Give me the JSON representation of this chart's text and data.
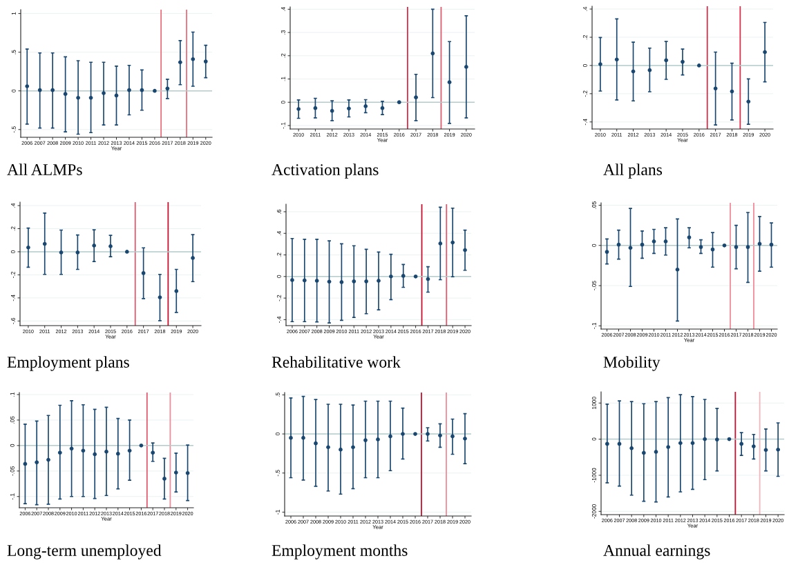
{
  "chart_data": [
    {
      "type": "scatter",
      "title": "All ALMPs",
      "xlabel": "Year",
      "x": [
        2006,
        2007,
        2008,
        2009,
        2010,
        2011,
        2012,
        2013,
        2014,
        2015,
        2016,
        2017,
        2018,
        2019,
        2020
      ],
      "xlim": [
        2005.5,
        2020.5
      ],
      "xticks": [
        2006,
        2007,
        2008,
        2009,
        2010,
        2011,
        2012,
        2013,
        2014,
        2015,
        2016,
        2017,
        2018,
        2019,
        2020
      ],
      "ylim": [
        -0.6,
        1.05
      ],
      "yticks": [
        {
          "value": -0.5,
          "label": "-.5"
        },
        0,
        {
          "value": 0.5,
          "label": ".5"
        },
        1
      ],
      "grid": "y",
      "marker": "circle",
      "series": [
        {
          "color": "#1a476f",
          "values": [
            0.06,
            0.01,
            0.01,
            -0.04,
            -0.09,
            -0.09,
            -0.03,
            -0.06,
            0.01,
            0.01,
            0,
            0.03,
            0.37,
            0.41,
            0.38
          ],
          "errors": [
            [
              -0.43,
              0.54
            ],
            [
              -0.48,
              0.49
            ],
            [
              -0.48,
              0.49
            ],
            [
              -0.53,
              0.44
            ],
            [
              -0.56,
              0.39
            ],
            [
              -0.54,
              0.37
            ],
            [
              -0.44,
              0.37
            ],
            [
              -0.44,
              0.32
            ],
            [
              -0.31,
              0.33
            ],
            [
              -0.25,
              0.27
            ],
            null,
            [
              -0.1,
              0.15
            ],
            [
              0.08,
              0.65
            ],
            [
              0.06,
              0.76
            ],
            [
              0.17,
              0.59
            ]
          ]
        }
      ],
      "ref_lines": [
        {
          "axis": "x",
          "value": 2016.5,
          "color": "#e8707f"
        },
        {
          "axis": "x",
          "value": 2018.5,
          "color": "#e8707f"
        },
        {
          "axis": "y",
          "value": 0,
          "color": "#b5cccc"
        }
      ]
    },
    {
      "type": "scatter",
      "title": "Activation plans",
      "xlabel": "Year",
      "x": [
        2010,
        2011,
        2012,
        2013,
        2014,
        2015,
        2016,
        2017,
        2018,
        2019,
        2020
      ],
      "xlim": [
        2009.5,
        2020.5
      ],
      "xticks": [
        2010,
        2011,
        2012,
        2013,
        2014,
        2015,
        2016,
        2017,
        2018,
        2019,
        2020
      ],
      "ylim": [
        -0.115,
        0.41
      ],
      "yticks": [
        {
          "value": -0.1,
          "label": "-.1"
        },
        0,
        {
          "value": 0.1,
          "label": ".1"
        },
        {
          "value": 0.2,
          "label": ".2"
        },
        {
          "value": 0.3,
          "label": ".3"
        },
        {
          "value": 0.4,
          "label": ".4"
        }
      ],
      "grid": "y",
      "marker": "circle",
      "series": [
        {
          "color": "#1a476f",
          "values": [
            -0.029,
            -0.025,
            -0.037,
            -0.027,
            -0.017,
            -0.025,
            0,
            0.021,
            0.21,
            0.086,
            0.152
          ],
          "errors": [
            [
              -0.069,
              0.01
            ],
            [
              -0.067,
              0.017
            ],
            [
              -0.079,
              0.006
            ],
            [
              -0.063,
              0.01
            ],
            [
              -0.045,
              0.011
            ],
            [
              -0.053,
              0.004
            ],
            null,
            [
              -0.079,
              0.12
            ],
            [
              0.02,
              0.4
            ],
            [
              -0.091,
              0.261
            ],
            [
              -0.067,
              0.372
            ]
          ]
        }
      ],
      "ref_lines": [
        {
          "axis": "x",
          "value": 2016.5,
          "color": "#d92f4a"
        },
        {
          "axis": "x",
          "value": 2018.5,
          "color": "#e05a6e"
        },
        {
          "axis": "y",
          "value": 0,
          "color": "#b5cccc"
        }
      ]
    },
    {
      "type": "scatter",
      "title": "All plans",
      "xlabel": "Year",
      "x": [
        2010,
        2011,
        2012,
        2013,
        2014,
        2015,
        2016,
        2017,
        2018,
        2019,
        2020
      ],
      "xlim": [
        2009.5,
        2020.5
      ],
      "xticks": [
        2010,
        2011,
        2012,
        2013,
        2014,
        2015,
        2016,
        2017,
        2018,
        2019,
        2020
      ],
      "ylim": [
        -0.45,
        0.42
      ],
      "yticks": [
        {
          "value": -0.4,
          "label": "-.4"
        },
        {
          "value": -0.2,
          "label": "-.2"
        },
        0,
        {
          "value": 0.2,
          "label": ".2"
        },
        {
          "value": 0.4,
          "label": ".4"
        }
      ],
      "grid": "y",
      "marker": "circle",
      "series": [
        {
          "color": "#1a476f",
          "values": [
            0.009,
            0.042,
            -0.042,
            -0.033,
            0.037,
            0.026,
            0,
            -0.163,
            -0.184,
            -0.256,
            0.095
          ],
          "errors": [
            [
              -0.181,
              0.198
            ],
            [
              -0.244,
              0.33
            ],
            [
              -0.251,
              0.165
            ],
            [
              -0.186,
              0.123
            ],
            [
              -0.098,
              0.17
            ],
            [
              -0.067,
              0.116
            ],
            null,
            [
              -0.421,
              0.095
            ],
            [
              -0.386,
              0.016
            ],
            [
              -0.416,
              -0.095
            ],
            [
              -0.116,
              0.305
            ]
          ]
        }
      ],
      "ref_lines": [
        {
          "axis": "x",
          "value": 2016.5,
          "color": "#d92f4a"
        },
        {
          "axis": "x",
          "value": 2018.5,
          "color": "#d92f4a"
        },
        {
          "axis": "y",
          "value": 0,
          "color": "#b5cccc"
        }
      ]
    },
    {
      "type": "scatter",
      "title": "Employment plans",
      "xlabel": "Year",
      "x": [
        2010,
        2011,
        2012,
        2013,
        2014,
        2015,
        2016,
        2017,
        2018,
        2019,
        2020
      ],
      "xlim": [
        2009.5,
        2020.5
      ],
      "xticks": [
        2010,
        2011,
        2012,
        2013,
        2014,
        2015,
        2016,
        2017,
        2018,
        2019,
        2020
      ],
      "ylim": [
        -0.64,
        0.43
      ],
      "yticks": [
        {
          "value": -0.6,
          "label": "-.6"
        },
        {
          "value": -0.4,
          "label": "-.4"
        },
        {
          "value": -0.2,
          "label": "-.2"
        },
        0,
        {
          "value": 0.2,
          "label": ".2"
        },
        {
          "value": 0.4,
          "label": ".4"
        }
      ],
      "grid": "y",
      "marker": "circle",
      "series": [
        {
          "color": "#1a476f",
          "values": [
            0.037,
            0.068,
            -0.006,
            -0.006,
            0.054,
            0.048,
            0,
            -0.185,
            -0.395,
            -0.341,
            -0.054
          ],
          "errors": [
            [
              -0.134,
              0.205
            ],
            [
              -0.196,
              0.335
            ],
            [
              -0.196,
              0.188
            ],
            [
              -0.153,
              0.145
            ],
            [
              -0.085,
              0.19
            ],
            [
              -0.043,
              0.142
            ],
            null,
            [
              -0.406,
              0.034
            ],
            [
              -0.597,
              -0.196
            ],
            [
              -0.526,
              -0.153
            ],
            [
              -0.259,
              0.148
            ]
          ]
        }
      ],
      "ref_lines": [
        {
          "axis": "x",
          "value": 2016.5,
          "color": "#e05a6e"
        },
        {
          "axis": "x",
          "value": 2018.5,
          "color": "#c8102e"
        },
        {
          "axis": "y",
          "value": 0,
          "color": "#b5cccc"
        }
      ]
    },
    {
      "type": "scatter",
      "title": "Rehabilitative work",
      "xlabel": "Year",
      "x": [
        2006,
        2007,
        2008,
        2009,
        2010,
        2011,
        2012,
        2013,
        2014,
        2015,
        2016,
        2017,
        2018,
        2019,
        2020
      ],
      "xlim": [
        2005.5,
        2020.5
      ],
      "xticks": [
        2006,
        2007,
        2008,
        2009,
        2010,
        2011,
        2012,
        2013,
        2014,
        2015,
        2016,
        2017,
        2018,
        2019,
        2020
      ],
      "ylim": [
        -0.455,
        0.67
      ],
      "yticks": [
        {
          "value": -0.4,
          "label": "-.4"
        },
        {
          "value": -0.2,
          "label": "-.2"
        },
        0,
        {
          "value": 0.2,
          "label": ".2"
        },
        {
          "value": 0.4,
          "label": ".4"
        },
        {
          "value": 0.6,
          "label": ".6"
        }
      ],
      "grid": "y",
      "marker": "circle",
      "series": [
        {
          "color": "#1a476f",
          "values": [
            -0.033,
            -0.036,
            -0.039,
            -0.048,
            -0.052,
            -0.045,
            -0.045,
            -0.039,
            0.0,
            0.006,
            0,
            -0.024,
            0.306,
            0.315,
            0.245
          ],
          "errors": [
            [
              -0.418,
              0.352
            ],
            [
              -0.418,
              0.345
            ],
            [
              -0.421,
              0.345
            ],
            [
              -0.43,
              0.33
            ],
            [
              -0.406,
              0.303
            ],
            [
              -0.379,
              0.285
            ],
            [
              -0.345,
              0.252
            ],
            [
              -0.309,
              0.227
            ],
            [
              -0.215,
              0.206
            ],
            [
              -0.1,
              0.112
            ],
            null,
            [
              -0.145,
              0.091
            ],
            [
              -0.03,
              0.642
            ],
            [
              -0.003,
              0.633
            ],
            [
              0.058,
              0.43
            ]
          ]
        }
      ],
      "ref_lines": [
        {
          "axis": "x",
          "value": 2016.5,
          "color": "#c8102e"
        },
        {
          "axis": "x",
          "value": 2018.5,
          "color": "#e05a6e"
        },
        {
          "axis": "y",
          "value": 0,
          "color": "#b5cccc"
        }
      ]
    },
    {
      "type": "scatter",
      "title": "Mobility",
      "xlabel": "Year",
      "x": [
        2006,
        2007,
        2008,
        2009,
        2010,
        2011,
        2012,
        2013,
        2014,
        2015,
        2016,
        2017,
        2018,
        2019,
        2020
      ],
      "xlim": [
        2005.5,
        2020.5
      ],
      "xticks": [
        2006,
        2007,
        2008,
        2009,
        2010,
        2011,
        2012,
        2013,
        2014,
        2015,
        2016,
        2017,
        2018,
        2019,
        2020
      ],
      "ylim": [
        -0.104,
        0.053
      ],
      "yticks": [
        {
          "value": -0.1,
          "label": "-.1"
        },
        {
          "value": -0.05,
          "label": "-.05"
        },
        0,
        {
          "value": 0.05,
          "label": ".05"
        }
      ],
      "grid": "y",
      "marker": "circle",
      "series": [
        {
          "color": "#1a476f",
          "values": [
            -0.008,
            0.001,
            -0.003,
            0.001,
            0.005,
            0.005,
            -0.03,
            0.01,
            -0.002,
            -0.005,
            0,
            -0.002,
            -0.002,
            0.002,
            0.001
          ],
          "errors": [
            [
              -0.023,
              0.008
            ],
            [
              -0.017,
              0.019
            ],
            [
              -0.051,
              0.046
            ],
            [
              -0.016,
              0.018
            ],
            [
              -0.01,
              0.02
            ],
            [
              -0.012,
              0.022
            ],
            [
              -0.094,
              0.033
            ],
            [
              -0.003,
              0.022
            ],
            [
              -0.01,
              0.007
            ],
            [
              -0.027,
              0.016
            ],
            null,
            [
              -0.029,
              0.025
            ],
            [
              -0.046,
              0.041
            ],
            [
              -0.032,
              0.036
            ],
            [
              -0.027,
              0.028
            ]
          ]
        }
      ],
      "ref_lines": [
        {
          "axis": "x",
          "value": 2016.5,
          "color": "#f08c99"
        },
        {
          "axis": "x",
          "value": 2018.5,
          "color": "#f08c99"
        },
        {
          "axis": "y",
          "value": 0,
          "color": "#b5cccc"
        }
      ]
    },
    {
      "type": "scatter",
      "title": "Long-term unemployed",
      "xlabel": "Year",
      "x": [
        2006,
        2007,
        2008,
        2009,
        2010,
        2011,
        2012,
        2013,
        2014,
        2015,
        2016,
        2017,
        2018,
        2019,
        2020
      ],
      "xlim": [
        2005.5,
        2020.5
      ],
      "xticks": [
        2006,
        2007,
        2008,
        2009,
        2010,
        2011,
        2012,
        2013,
        2014,
        2015,
        2016,
        2017,
        2018,
        2019,
        2020
      ],
      "ylim": [
        -0.122,
        0.104
      ],
      "yticks": [
        {
          "value": -0.1,
          "label": "-.1"
        },
        {
          "value": -0.05,
          "label": "-.05"
        },
        0,
        {
          "value": 0.05,
          "label": ".05"
        },
        {
          "value": 0.1,
          "label": ".1"
        }
      ],
      "grid": "y",
      "marker": "circle",
      "series": [
        {
          "color": "#1a476f",
          "values": [
            -0.036,
            -0.033,
            -0.028,
            -0.014,
            -0.006,
            -0.01,
            -0.017,
            -0.012,
            -0.016,
            -0.01,
            0,
            -0.014,
            -0.065,
            -0.053,
            -0.054
          ],
          "errors": [
            [
              -0.114,
              0.042
            ],
            [
              -0.116,
              0.048
            ],
            [
              -0.115,
              0.059
            ],
            [
              -0.105,
              0.079
            ],
            [
              -0.1,
              0.088
            ],
            [
              -0.1,
              0.08
            ],
            [
              -0.104,
              0.071
            ],
            [
              -0.098,
              0.075
            ],
            [
              -0.085,
              0.053
            ],
            [
              -0.068,
              0.05
            ],
            null,
            [
              -0.031,
              0.005
            ],
            [
              -0.105,
              -0.025
            ],
            [
              -0.091,
              -0.015
            ],
            [
              -0.108,
              0.001
            ]
          ]
        }
      ],
      "ref_lines": [
        {
          "axis": "x",
          "value": 2016.5,
          "color": "#e05a6e"
        },
        {
          "axis": "x",
          "value": 2018.5,
          "color": "#f08c99"
        },
        {
          "axis": "y",
          "value": 0,
          "color": "#b5cccc"
        }
      ]
    },
    {
      "type": "scatter",
      "title": "Employment months",
      "xlabel": "Year",
      "x": [
        2006,
        2007,
        2008,
        2009,
        2010,
        2011,
        2012,
        2013,
        2014,
        2015,
        2016,
        2017,
        2018,
        2019,
        2020
      ],
      "xlim": [
        2005.5,
        2020.5
      ],
      "xticks": [
        2006,
        2007,
        2008,
        2009,
        2010,
        2011,
        2012,
        2013,
        2014,
        2015,
        2016,
        2017,
        2018,
        2019,
        2020
      ],
      "ylim": [
        -1.05,
        0.53
      ],
      "yticks": [
        -1,
        {
          "value": -0.5,
          "label": "-.5"
        },
        0,
        {
          "value": 0.5,
          "label": ".5"
        }
      ],
      "grid": "y",
      "marker": "circle",
      "series": [
        {
          "color": "#1a476f",
          "values": [
            -0.05,
            -0.05,
            -0.12,
            -0.17,
            -0.2,
            -0.17,
            -0.08,
            -0.07,
            -0.03,
            0.0,
            0,
            0.0,
            -0.02,
            -0.03,
            -0.06
          ],
          "errors": [
            [
              -0.56,
              0.46
            ],
            [
              -0.59,
              0.48
            ],
            [
              -0.67,
              0.44
            ],
            [
              -0.73,
              0.38
            ],
            [
              -0.77,
              0.38
            ],
            [
              -0.7,
              0.37
            ],
            [
              -0.56,
              0.42
            ],
            [
              -0.56,
              0.42
            ],
            [
              -0.47,
              0.42
            ],
            [
              -0.32,
              0.33
            ],
            null,
            [
              -0.09,
              0.08
            ],
            [
              -0.17,
              0.13
            ],
            [
              -0.26,
              0.19
            ],
            [
              -0.38,
              0.26
            ]
          ]
        }
      ],
      "ref_lines": [
        {
          "axis": "x",
          "value": 2016.5,
          "color": "#c8102e"
        },
        {
          "axis": "x",
          "value": 2018.5,
          "color": "#f08c99"
        },
        {
          "axis": "y",
          "value": 0,
          "color": "#b5cccc"
        }
      ]
    },
    {
      "type": "scatter",
      "title": "Annual earnings",
      "xlabel": "Year",
      "x": [
        2006,
        2007,
        2008,
        2009,
        2010,
        2011,
        2012,
        2013,
        2014,
        2015,
        2016,
        2017,
        2018,
        2019,
        2020
      ],
      "xlim": [
        2005.5,
        2020.5
      ],
      "xticks": [
        2006,
        2007,
        2008,
        2009,
        2010,
        2011,
        2012,
        2013,
        2014,
        2015,
        2016,
        2017,
        2018,
        2019,
        2020
      ],
      "ylim": [
        -2090,
        1310
      ],
      "yticks": [
        -2000,
        -1000,
        0,
        1000
      ],
      "grid": "y",
      "marker": "circle",
      "series": [
        {
          "color": "#1a476f",
          "values": [
            -130,
            -130,
            -250,
            -380,
            -350,
            -220,
            -110,
            -110,
            0,
            -10,
            0,
            -130,
            -200,
            -300,
            -290
          ],
          "errors": [
            [
              -1210,
              970
            ],
            [
              -1300,
              1060
            ],
            [
              -1550,
              1040
            ],
            [
              -1720,
              980
            ],
            [
              -1740,
              1040
            ],
            [
              -1600,
              1150
            ],
            [
              -1460,
              1230
            ],
            [
              -1390,
              1180
            ],
            [
              -1120,
              1100
            ],
            [
              -880,
              850
            ],
            null,
            [
              -450,
              180
            ],
            [
              -550,
              130
            ],
            [
              -880,
              280
            ],
            [
              -1030,
              450
            ]
          ]
        }
      ],
      "ref_lines": [
        {
          "axis": "x",
          "value": 2016.5,
          "color": "#c8102e"
        },
        {
          "axis": "x",
          "value": 2018.5,
          "color": "#f5b5bd"
        },
        {
          "axis": "y",
          "value": 0,
          "color": "#b5cccc"
        }
      ]
    }
  ]
}
